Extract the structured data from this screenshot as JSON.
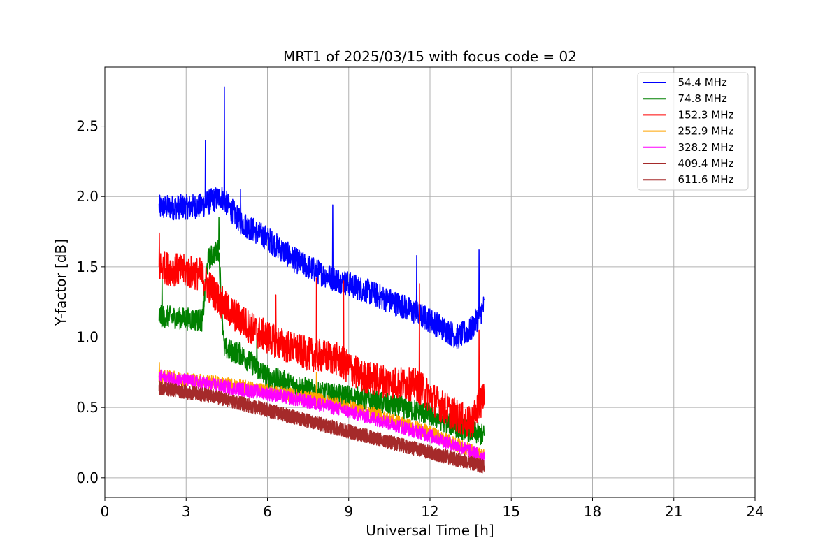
{
  "chart_data": {
    "type": "line",
    "title": "MRT1 of 2025/03/15 with focus code = 02",
    "xlabel": "Universal Time [h]",
    "ylabel": "Y-factor [dB]",
    "xlim": [
      0,
      24
    ],
    "ylim": [
      -0.14,
      2.92
    ],
    "xticks": [
      0,
      3,
      6,
      9,
      12,
      15,
      18,
      21,
      24
    ],
    "yticks": [
      0.0,
      0.5,
      1.0,
      1.5,
      2.0,
      2.5
    ],
    "ytick_labels": [
      "0.0",
      "0.5",
      "1.0",
      "1.5",
      "2.0",
      "2.5"
    ],
    "grid": true,
    "legend_position": "top-right",
    "series": [
      {
        "name": "  54.4 MHz",
        "color": "#0000ff",
        "time_range": [
          2.0,
          14.0
        ],
        "noise": 0.09,
        "trend": [
          [
            2.0,
            1.92
          ],
          [
            3.5,
            1.93
          ],
          [
            4.3,
            2.0
          ],
          [
            5.0,
            1.82
          ],
          [
            6.0,
            1.7
          ],
          [
            7.0,
            1.55
          ],
          [
            8.0,
            1.45
          ],
          [
            9.0,
            1.38
          ],
          [
            10.0,
            1.3
          ],
          [
            11.0,
            1.22
          ],
          [
            12.0,
            1.12
          ],
          [
            13.0,
            1.0
          ],
          [
            13.5,
            1.05
          ],
          [
            14.0,
            1.22
          ]
        ],
        "spikes": [
          [
            4.4,
            2.78
          ],
          [
            3.7,
            2.4
          ],
          [
            8.4,
            1.94
          ],
          [
            11.5,
            1.58
          ],
          [
            13.8,
            1.62
          ],
          [
            5.0,
            2.05
          ]
        ]
      },
      {
        "name": "  74.8 MHz",
        "color": "#008000",
        "time_range": [
          2.0,
          14.0
        ],
        "noise": 0.08,
        "trend": [
          [
            2.0,
            1.15
          ],
          [
            3.6,
            1.12
          ],
          [
            3.8,
            1.55
          ],
          [
            4.2,
            1.62
          ],
          [
            4.4,
            0.92
          ],
          [
            5.0,
            0.88
          ],
          [
            6.0,
            0.72
          ],
          [
            7.0,
            0.66
          ],
          [
            8.0,
            0.6
          ],
          [
            9.0,
            0.58
          ],
          [
            10.0,
            0.54
          ],
          [
            11.0,
            0.5
          ],
          [
            12.0,
            0.45
          ],
          [
            13.0,
            0.36
          ],
          [
            14.0,
            0.3
          ]
        ],
        "spikes": [
          [
            4.2,
            1.85
          ],
          [
            2.1,
            1.42
          ],
          [
            5.6,
            1.0
          ]
        ]
      },
      {
        "name": "  152.3 MHz",
        "color": "#ff0000",
        "time_range": [
          2.0,
          14.0
        ],
        "noise": 0.12,
        "trend": [
          [
            2.0,
            1.5
          ],
          [
            3.5,
            1.45
          ],
          [
            4.5,
            1.2
          ],
          [
            5.5,
            1.05
          ],
          [
            6.5,
            0.95
          ],
          [
            7.5,
            0.88
          ],
          [
            8.5,
            0.85
          ],
          [
            9.5,
            0.72
          ],
          [
            10.5,
            0.68
          ],
          [
            11.5,
            0.66
          ],
          [
            12.5,
            0.5
          ],
          [
            13.5,
            0.38
          ],
          [
            14.0,
            0.6
          ]
        ],
        "spikes": [
          [
            7.8,
            1.42
          ],
          [
            8.8,
            1.4
          ],
          [
            11.6,
            1.38
          ],
          [
            2.0,
            1.74
          ],
          [
            13.8,
            1.05
          ],
          [
            6.3,
            1.3
          ]
        ]
      },
      {
        "name": "  252.9 MHz",
        "color": "#ffa500",
        "time_range": [
          2.0,
          14.0
        ],
        "noise": 0.05,
        "trend": [
          [
            2.0,
            0.72
          ],
          [
            4.0,
            0.68
          ],
          [
            6.0,
            0.62
          ],
          [
            8.0,
            0.55
          ],
          [
            10.0,
            0.45
          ],
          [
            12.0,
            0.32
          ],
          [
            14.0,
            0.15
          ]
        ],
        "spikes": [
          [
            7.8,
            0.75
          ],
          [
            2.0,
            0.82
          ]
        ]
      },
      {
        "name": "  328.2 MHz",
        "color": "#ff00ff",
        "time_range": [
          2.0,
          14.0
        ],
        "noise": 0.05,
        "trend": [
          [
            2.0,
            0.72
          ],
          [
            4.0,
            0.66
          ],
          [
            6.0,
            0.6
          ],
          [
            8.0,
            0.52
          ],
          [
            10.0,
            0.42
          ],
          [
            12.0,
            0.3
          ],
          [
            14.0,
            0.15
          ]
        ],
        "spikes": []
      },
      {
        "name": "  409.4 MHz",
        "color": "#a52a2a",
        "time_range": [
          2.0,
          14.0
        ],
        "noise": 0.05,
        "trend": [
          [
            2.0,
            0.64
          ],
          [
            4.0,
            0.58
          ],
          [
            6.0,
            0.48
          ],
          [
            8.0,
            0.38
          ],
          [
            10.0,
            0.28
          ],
          [
            12.0,
            0.18
          ],
          [
            14.0,
            0.08
          ]
        ],
        "spikes": []
      },
      {
        "name": "  611.6 MHz",
        "color": "#a52a2a",
        "time_range": [
          2.0,
          14.0
        ],
        "noise": 0.05,
        "trend": [
          [
            2.0,
            0.64
          ],
          [
            4.0,
            0.58
          ],
          [
            6.0,
            0.48
          ],
          [
            8.0,
            0.38
          ],
          [
            10.0,
            0.28
          ],
          [
            12.0,
            0.18
          ],
          [
            14.0,
            0.08
          ]
        ],
        "spikes": []
      }
    ]
  }
}
